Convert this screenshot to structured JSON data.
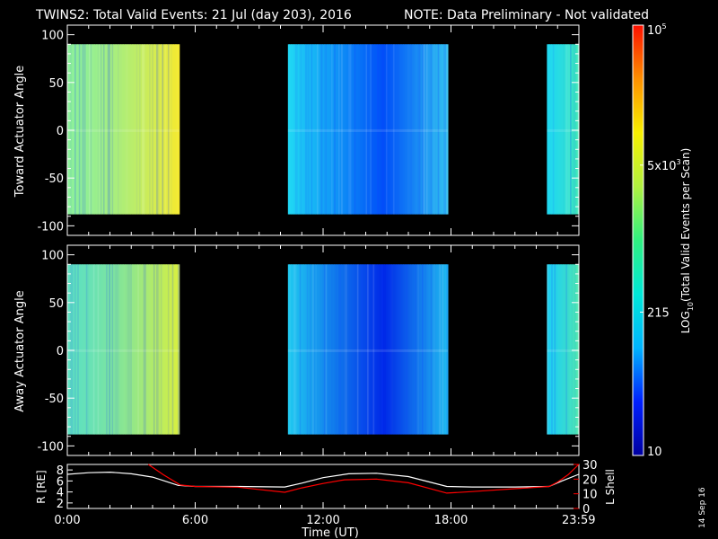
{
  "header": {
    "title": "TWINS2: Total Valid Events: 21 Jul (day 203), 2016",
    "note": "NOTE: Data Preliminary - Not validated",
    "note_color": "#ff2020"
  },
  "footer": {
    "date_stamp": "14 Sep 16"
  },
  "colorbar": {
    "label": "LOG10(Total Valid Events per Scan)",
    "label_main": "LOG",
    "label_sub": "10",
    "label_rest": "(Total Valid Events per Scan)",
    "ticks": [
      {
        "label": "10",
        "value": 10
      },
      {
        "label": "215",
        "value": 215
      },
      {
        "label": "5x10",
        "sup": "3",
        "value": 5000
      },
      {
        "label": "10",
        "sup": "5",
        "value": 100000
      }
    ],
    "colors": [
      "#0000a0",
      "#0020ff",
      "#00b4ff",
      "#00e8d8",
      "#30f080",
      "#b0f040",
      "#f8f000",
      "#ff9000",
      "#ff1000"
    ]
  },
  "chart_data": [
    {
      "type": "heatmap",
      "name": "toward",
      "ylabel": "Toward Actuator Angle",
      "yticks": [
        100,
        50,
        0,
        -50,
        -100
      ],
      "ylim": [
        -110,
        110
      ],
      "xlim": [
        0,
        24
      ],
      "data_y_range": [
        -88,
        90
      ],
      "segments": [
        {
          "start": 0.0,
          "end": 5.25,
          "color_start": "#8cf09a",
          "color_end": "#f4ea30"
        },
        {
          "start": 10.35,
          "end": 17.85,
          "color_start": "#20d8f4",
          "color_mid": "#0050f8",
          "color_end": "#30c0f0"
        },
        {
          "start": 22.5,
          "end": 23.99,
          "color_start": "#20d8f0",
          "color_end": "#40e8b8"
        }
      ]
    },
    {
      "type": "heatmap",
      "name": "away",
      "ylabel": "Away Actuator Angle",
      "yticks": [
        100,
        50,
        0,
        -50,
        -100
      ],
      "ylim": [
        -110,
        110
      ],
      "xlim": [
        0,
        24
      ],
      "data_y_range": [
        -88,
        90
      ],
      "segments": [
        {
          "start": 0.0,
          "end": 5.25,
          "color_start": "#5ee0c0",
          "color_end": "#d8f040"
        },
        {
          "start": 10.35,
          "end": 17.85,
          "color_start": "#20c8f0",
          "color_mid": "#0028e8",
          "color_end": "#20b8f0"
        },
        {
          "start": 22.5,
          "end": 23.99,
          "color_start": "#20d0f0",
          "color_end": "#50e8b0"
        }
      ]
    },
    {
      "type": "line",
      "name": "orbit",
      "ylabel_left": "R [RE]",
      "ylabel_right": "L Shell",
      "ylim_left": [
        1,
        9
      ],
      "ylim_right": [
        0,
        30
      ],
      "yticks_left": [
        2,
        4,
        6,
        8
      ],
      "yticks_right": [
        0,
        10,
        20,
        30
      ],
      "xlabel": "Time (UT)",
      "xticks": [
        "0:00",
        "6:00",
        "12:00",
        "18:00",
        "23:59"
      ],
      "xtick_values": [
        0,
        6,
        12,
        18,
        23.99
      ],
      "series": [
        {
          "name": "R",
          "color": "#ffffff",
          "x": [
            0,
            1,
            2,
            3,
            4,
            5.2,
            6,
            8,
            10.2,
            11,
            12,
            13.2,
            14.5,
            16,
            17.8,
            19,
            21,
            22.6,
            23.2,
            23.99
          ],
          "y": [
            7.2,
            7.5,
            7.6,
            7.3,
            6.7,
            5.2,
            5.0,
            5.0,
            4.9,
            5.6,
            6.6,
            7.3,
            7.4,
            6.8,
            5.0,
            4.9,
            4.9,
            5.0,
            6.0,
            7.2
          ]
        },
        {
          "name": "L Shell",
          "color": "#ff0000",
          "x": [
            3.8,
            4.5,
            5.3,
            6,
            8,
            10.2,
            11,
            12,
            13,
            14.5,
            16,
            17.8,
            19,
            21,
            22.6,
            23.0,
            23.5,
            23.99
          ],
          "y": [
            30,
            23,
            16,
            15,
            14.5,
            11,
            14,
            17,
            19.5,
            20,
            17.5,
            10.5,
            11.5,
            13.5,
            15,
            18,
            23,
            30
          ]
        }
      ]
    }
  ]
}
